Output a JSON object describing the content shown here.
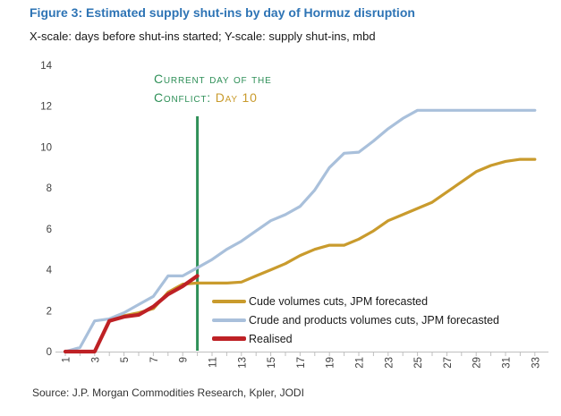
{
  "header": {
    "title": "Figure 3: Estimated supply shut-ins by day of Hormuz disruption",
    "subtitle": "X-scale: days before shut-ins started; Y-scale: supply shut-ins, mbd"
  },
  "source": "Source: J.P. Morgan Commodities Research, Kpler, JODI",
  "colors": {
    "title": "#2E74B5",
    "gold": "#C99B2D",
    "blue": "#A9C0DB",
    "red": "#BE2125",
    "green": "#2F9058",
    "axis": "#BFBFBF",
    "tick_label": "#404040"
  },
  "chart_data": {
    "type": "line",
    "title": "Estimated supply shut-ins by day of Hormuz disruption",
    "xlabel": "days before shut-ins started",
    "ylabel": "supply shut-ins, mbd",
    "x": [
      1,
      2,
      3,
      4,
      5,
      6,
      7,
      8,
      9,
      10,
      11,
      12,
      13,
      14,
      15,
      16,
      17,
      18,
      19,
      20,
      21,
      22,
      23,
      24,
      25,
      26,
      27,
      28,
      29,
      30,
      31,
      32,
      33
    ],
    "xticks": [
      1,
      3,
      5,
      7,
      9,
      11,
      13,
      15,
      17,
      19,
      21,
      23,
      25,
      27,
      29,
      31,
      33
    ],
    "ylim": [
      0,
      14
    ],
    "yticks": [
      0,
      2,
      4,
      6,
      8,
      10,
      12,
      14
    ],
    "grid": false,
    "legend_position": "inside-lower-right",
    "annotation": {
      "line1": "Current day of the",
      "line2_green": "Conflict:",
      "line2_gold": "Day 10",
      "x_day": 10
    },
    "series": [
      {
        "name": "Cude volumes cuts, JPM forecasted",
        "color": "#C99B2D",
        "values": [
          0,
          0,
          0,
          1.5,
          1.75,
          1.9,
          2.1,
          2.9,
          3.3,
          3.35,
          3.35,
          3.35,
          3.4,
          3.7,
          4.0,
          4.3,
          4.7,
          5.0,
          5.2,
          5.2,
          5.5,
          5.9,
          6.4,
          6.7,
          7.0,
          7.3,
          7.8,
          8.3,
          8.8,
          9.1,
          9.3,
          9.4,
          9.4
        ]
      },
      {
        "name": "Crude and products volumes cuts, JPM forecasted",
        "color": "#A9C0DB",
        "values": [
          0,
          0.2,
          1.5,
          1.6,
          1.9,
          2.3,
          2.7,
          3.7,
          3.7,
          4.1,
          4.5,
          5.0,
          5.4,
          5.9,
          6.4,
          6.7,
          7.1,
          7.9,
          9.0,
          9.7,
          9.75,
          10.3,
          10.9,
          11.4,
          11.8,
          11.8,
          11.8,
          11.8,
          11.8,
          11.8,
          11.8,
          11.8,
          11.8
        ]
      },
      {
        "name": "Realised",
        "color": "#BE2125",
        "values": [
          0,
          0,
          0,
          1.5,
          1.7,
          1.8,
          2.2,
          2.8,
          3.2,
          3.7
        ]
      }
    ]
  }
}
